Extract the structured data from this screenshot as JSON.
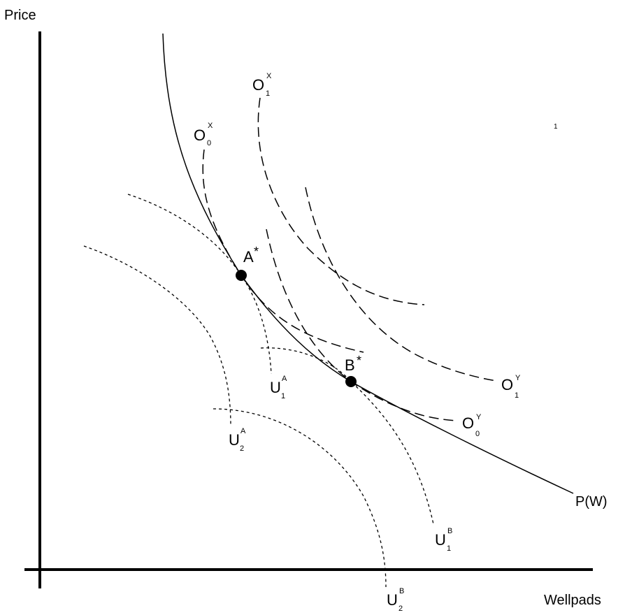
{
  "axes": {
    "y_label": "Price",
    "x_label": "Wellpads"
  },
  "curves": {
    "price_curve": "P(W)",
    "o0x": {
      "base": "O",
      "sup": "X",
      "sub": "0"
    },
    "o1x": {
      "base": "O",
      "sup": "X",
      "sub": "1"
    },
    "o0y": {
      "base": "O",
      "sup": "Y",
      "sub": "0"
    },
    "o1y": {
      "base": "O",
      "sup": "Y",
      "sub": "1"
    },
    "u1a": {
      "base": "U",
      "sup": "A",
      "sub": "1"
    },
    "u2a": {
      "base": "U",
      "sup": "A",
      "sub": "2"
    },
    "u1b": {
      "base": "U",
      "sup": "B",
      "sub": "1"
    },
    "u2b": {
      "base": "U",
      "sup": "B",
      "sub": "2"
    }
  },
  "points": {
    "a_star": {
      "base": "A",
      "star": "*"
    },
    "b_star": {
      "base": "B",
      "star": "*"
    }
  },
  "stray_mark": "1",
  "colors": {
    "ink": "#000000",
    "background": "#ffffff"
  }
}
